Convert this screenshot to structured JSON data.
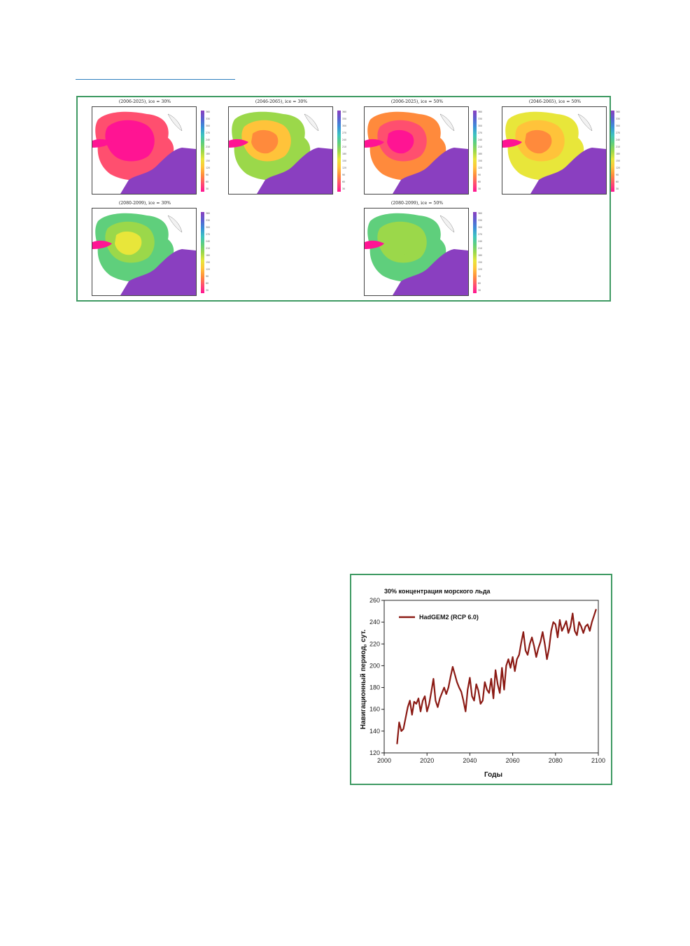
{
  "map_panel_titles": [
    "(2006-2025),  ice = 30%",
    "(2046-2065),  ice = 30%",
    "(2006-2025),  ice = 50%",
    "(2046-2065),  ice = 50%",
    "(2080-2099),  ice = 30%",
    "(2080-2099),  ice = 50%"
  ],
  "colors": {
    "frame_green": "#3f9a63",
    "line_red": "#8b1a14",
    "rule_blue": "#2f7fbf",
    "scale": [
      "#ff1493",
      "#ff4f6f",
      "#ff8a3c",
      "#ffc33a",
      "#e8e63a",
      "#9bd84a",
      "#5fcf7c",
      "#3cc3c0",
      "#3a8fd8",
      "#5b5fd0",
      "#8a3fc0"
    ]
  },
  "chart_data": [
    {
      "type": "line",
      "title": "30% концентрация морского льда",
      "xlabel": "Годы",
      "ylabel": "Навигационный период, сут.",
      "xlim": [
        2000,
        2100
      ],
      "ylim": [
        120,
        260
      ],
      "x_ticks": [
        2000,
        2020,
        2040,
        2060,
        2080,
        2100
      ],
      "y_ticks": [
        120,
        140,
        160,
        180,
        200,
        220,
        240,
        260
      ],
      "legend_position": "top-left",
      "grid": false,
      "series": [
        {
          "name": "HadGEM2 (RCP 6.0)",
          "color": "#8b1a14",
          "x": [
            2006,
            2007,
            2008,
            2009,
            2010,
            2011,
            2012,
            2013,
            2014,
            2015,
            2016,
            2017,
            2018,
            2019,
            2020,
            2021,
            2022,
            2023,
            2024,
            2025,
            2026,
            2027,
            2028,
            2029,
            2030,
            2031,
            2032,
            2033,
            2034,
            2035,
            2036,
            2037,
            2038,
            2039,
            2040,
            2041,
            2042,
            2043,
            2044,
            2045,
            2046,
            2047,
            2048,
            2049,
            2050,
            2051,
            2052,
            2053,
            2054,
            2055,
            2056,
            2057,
            2058,
            2059,
            2060,
            2061,
            2062,
            2063,
            2064,
            2065,
            2066,
            2067,
            2068,
            2069,
            2070,
            2071,
            2072,
            2073,
            2074,
            2075,
            2076,
            2077,
            2078,
            2079,
            2080,
            2081,
            2082,
            2083,
            2084,
            2085,
            2086,
            2087,
            2088,
            2089,
            2090,
            2091,
            2092,
            2093,
            2094,
            2095,
            2096,
            2097,
            2098,
            2099
          ],
          "values": [
            128,
            148,
            140,
            142,
            152,
            162,
            168,
            155,
            167,
            165,
            170,
            158,
            168,
            172,
            158,
            165,
            176,
            188,
            168,
            162,
            170,
            175,
            180,
            174,
            180,
            190,
            199,
            192,
            185,
            180,
            176,
            168,
            158,
            178,
            189,
            172,
            168,
            183,
            177,
            165,
            168,
            185,
            178,
            175,
            188,
            170,
            196,
            183,
            175,
            198,
            178,
            200,
            206,
            198,
            208,
            195,
            206,
            210,
            221,
            231,
            214,
            210,
            220,
            226,
            218,
            208,
            216,
            222,
            231,
            220,
            206,
            216,
            232,
            240,
            238,
            226,
            242,
            232,
            236,
            241,
            230,
            236,
            248,
            232,
            228,
            240,
            236,
            230,
            236,
            238,
            232,
            240,
            246,
            252
          ]
        }
      ]
    }
  ]
}
